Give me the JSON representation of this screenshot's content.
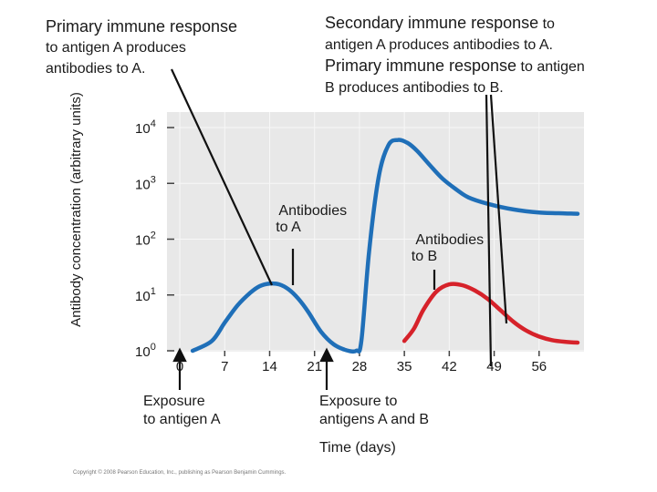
{
  "captions": {
    "left": {
      "line1": "Primary immune response",
      "line2": "to antigen A produces",
      "line3": "antibodies to A."
    },
    "right": {
      "line1_a": "Secondary immune response",
      "line1_b": " to",
      "line2": "antigen A produces antibodies to A.",
      "line3_a": "Primary immune response",
      "line3_b": " to antigen",
      "line4": "B produces antibodies to B."
    }
  },
  "annotations": {
    "antibodies_a": [
      "Antibodies",
      "to A"
    ],
    "antibodies_b": [
      "Antibodies",
      "to B"
    ],
    "exposure_a": [
      "Exposure",
      "to antigen A"
    ],
    "exposure_ab": [
      "Exposure to",
      "antigens A and B"
    ]
  },
  "copyright": "Copyright © 2008 Pearson Education, Inc., publishing as Pearson Benjamin Cummings.",
  "colors": {
    "antibodies_a": "#1f6fb8",
    "antibodies_b": "#d6222a",
    "plot_background": "#e8e8e8",
    "grid": "#f7f7f7"
  },
  "chart_data": {
    "type": "line",
    "title": "",
    "xlabel": "Time (days)",
    "ylabel": "Antibody concentration (arbitrary units)",
    "x_ticks": [
      0,
      7,
      14,
      21,
      28,
      35,
      42,
      49,
      56
    ],
    "y_ticks": [
      {
        "base": "10",
        "exp": "0"
      },
      {
        "base": "10",
        "exp": "1"
      },
      {
        "base": "10",
        "exp": "2"
      },
      {
        "base": "10",
        "exp": "3"
      },
      {
        "base": "10",
        "exp": "4"
      }
    ],
    "y_scale": "log",
    "ylim": [
      1,
      10000
    ],
    "xlim": [
      -2,
      63
    ],
    "grid": true,
    "series": [
      {
        "name": "Antibodies to A",
        "color": "#1f6fb8",
        "x": [
          2,
          5,
          7,
          9,
          11,
          12.5,
          14,
          15.5,
          17,
          18.5,
          20,
          22,
          24,
          26,
          27.5,
          28.3,
          29.5,
          31,
          32.5,
          34,
          35.5,
          37,
          39,
          41,
          43,
          45,
          48,
          52,
          56,
          60,
          62
        ],
        "y": [
          1,
          1.5,
          3.2,
          6.5,
          11,
          14.5,
          16,
          15.5,
          12.5,
          8.5,
          5,
          2.2,
          1.3,
          1.02,
          1,
          1.5,
          60,
          1300,
          4800,
          6000,
          5300,
          3800,
          2100,
          1200,
          790,
          560,
          430,
          340,
          300,
          290,
          285
        ]
      },
      {
        "name": "Antibodies to B",
        "color": "#d6222a",
        "x": [
          35,
          36.5,
          38,
          40,
          42,
          44,
          46,
          48,
          50,
          52,
          54,
          56,
          58,
          60,
          62
        ],
        "y": [
          1.5,
          2.5,
          5.5,
          11.5,
          15.5,
          15,
          12,
          8.5,
          5.3,
          3.3,
          2.3,
          1.8,
          1.55,
          1.45,
          1.4
        ]
      }
    ]
  }
}
